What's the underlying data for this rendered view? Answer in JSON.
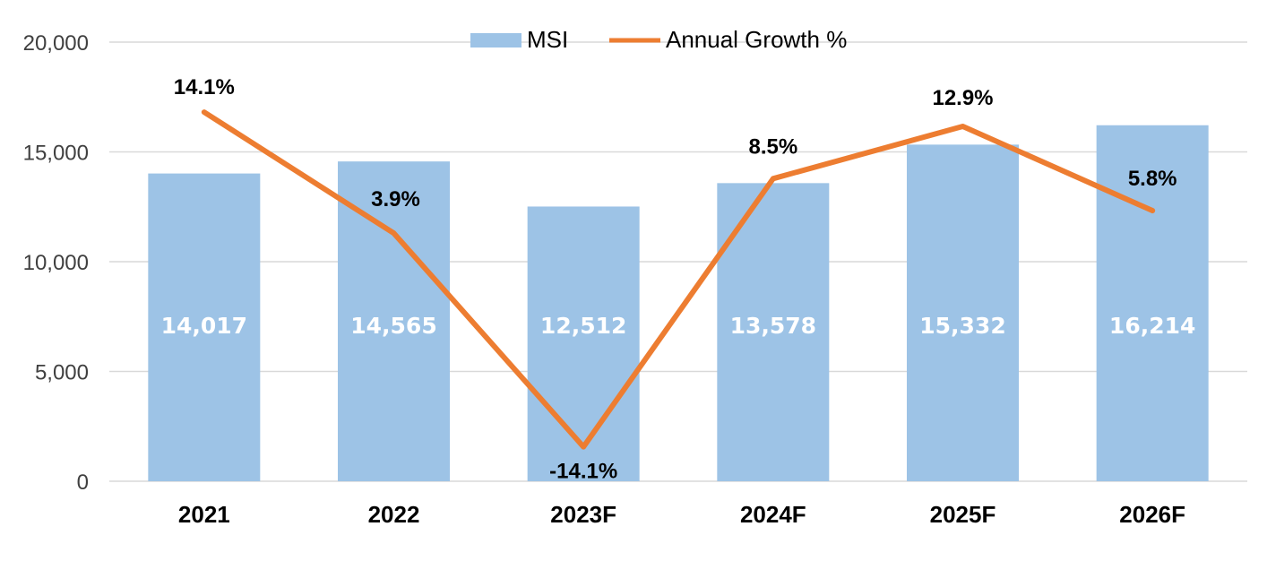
{
  "chart_data": {
    "type": "bar",
    "categories": [
      "2021",
      "2022",
      "2023F",
      "2024F",
      "2025F",
      "2026F"
    ],
    "series": [
      {
        "name": "MSI",
        "type": "bar",
        "values": [
          14017,
          14565,
          12512,
          13578,
          15332,
          16214
        ],
        "labels": [
          "14,017",
          "14,565",
          "12,512",
          "13,578",
          "15,332",
          "16,214"
        ],
        "color": "#9dc3e6"
      },
      {
        "name": "Annual Growth %",
        "type": "line",
        "values": [
          14.1,
          3.9,
          -14.1,
          8.5,
          12.9,
          5.8
        ],
        "labels": [
          "14.1%",
          "3.9%",
          "-14.1%",
          "8.5%",
          "12.9%",
          "5.8%"
        ],
        "color": "#ed7d31"
      }
    ],
    "ylim": [
      0,
      20000
    ],
    "yticks": [
      0,
      5000,
      10000,
      15000,
      20000
    ],
    "ytick_labels": [
      "0",
      "5,000",
      "10,000",
      "15,000",
      "20,000"
    ],
    "secondary_ylim": [
      -17,
      20
    ],
    "grid": true,
    "legend_position": "top-center",
    "title": "",
    "xlabel": "",
    "ylabel": ""
  }
}
